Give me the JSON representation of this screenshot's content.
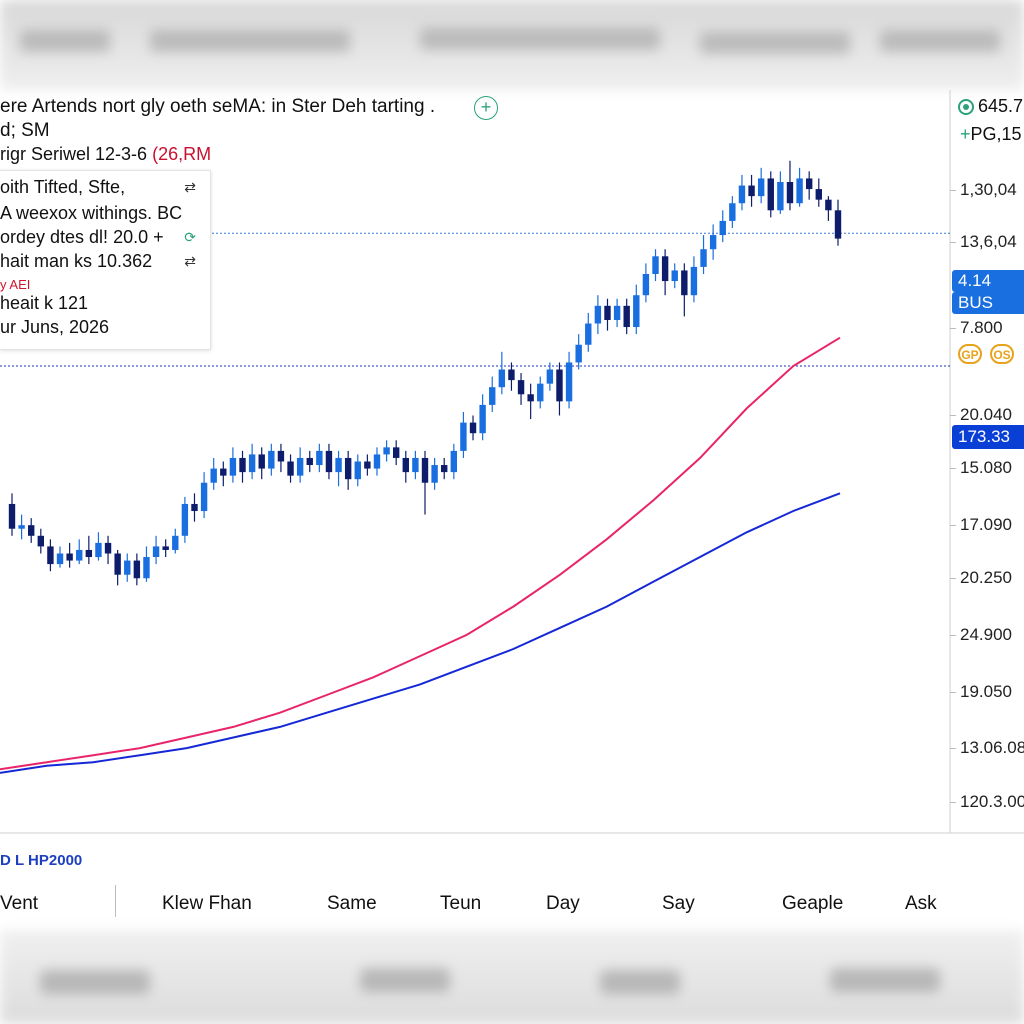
{
  "chart_data": {
    "type": "candlestick",
    "title": "ere Artends nort gly oeth seMA: in Ster Deh tarting .",
    "subtitle": "d; SM",
    "series_label": "rigr Seriwel 12-3-6",
    "series_label_red": "(26,RM",
    "info": {
      "line1": "oith Tifted, Sfte,",
      "line2": "A weexox withings. BC",
      "line3": "ordey dtes dl! 20.0 +",
      "line4": "hait man ks 10.362",
      "line5": "y AEI",
      "line6": "heait k 121",
      "line7": "ur Juns, 2026"
    },
    "candles": [
      [
        20.3,
        19.6,
        20.6,
        19.4
      ],
      [
        19.6,
        19.7,
        20.0,
        19.3
      ],
      [
        19.7,
        19.4,
        19.9,
        19.2
      ],
      [
        19.4,
        19.1,
        19.6,
        18.9
      ],
      [
        19.1,
        18.6,
        19.3,
        18.4
      ],
      [
        18.6,
        18.9,
        19.1,
        18.5
      ],
      [
        18.9,
        18.7,
        19.2,
        18.5
      ],
      [
        18.7,
        19.0,
        19.3,
        18.6
      ],
      [
        19.0,
        18.8,
        19.4,
        18.6
      ],
      [
        18.8,
        19.2,
        19.5,
        18.7
      ],
      [
        19.2,
        18.9,
        19.4,
        18.6
      ],
      [
        18.9,
        18.3,
        19.0,
        18.0
      ],
      [
        18.3,
        18.7,
        18.9,
        18.1
      ],
      [
        18.7,
        18.2,
        18.9,
        18.0
      ],
      [
        18.2,
        18.8,
        19.1,
        18.1
      ],
      [
        18.8,
        19.1,
        19.4,
        18.6
      ],
      [
        19.1,
        19.0,
        19.3,
        18.8
      ],
      [
        19.0,
        19.4,
        19.6,
        18.9
      ],
      [
        19.4,
        20.3,
        20.5,
        19.2
      ],
      [
        20.3,
        20.1,
        20.6,
        19.8
      ],
      [
        20.1,
        20.9,
        21.2,
        19.9
      ],
      [
        20.9,
        21.3,
        21.6,
        20.7
      ],
      [
        21.3,
        21.1,
        21.5,
        20.8
      ],
      [
        21.1,
        21.6,
        21.9,
        20.9
      ],
      [
        21.6,
        21.2,
        21.8,
        20.9
      ],
      [
        21.2,
        21.7,
        22.0,
        21.0
      ],
      [
        21.7,
        21.3,
        21.9,
        21.0
      ],
      [
        21.3,
        21.8,
        22.0,
        21.1
      ],
      [
        21.8,
        21.5,
        22.0,
        21.2
      ],
      [
        21.5,
        21.1,
        21.7,
        20.9
      ],
      [
        21.1,
        21.6,
        21.9,
        20.9
      ],
      [
        21.6,
        21.4,
        21.8,
        21.2
      ],
      [
        21.4,
        21.8,
        22.0,
        21.2
      ],
      [
        21.8,
        21.2,
        22.0,
        21.0
      ],
      [
        21.2,
        21.6,
        21.8,
        20.8
      ],
      [
        21.6,
        21.0,
        21.8,
        20.7
      ],
      [
        21.0,
        21.5,
        21.7,
        20.8
      ],
      [
        21.5,
        21.3,
        21.7,
        21.1
      ],
      [
        21.3,
        21.7,
        21.9,
        21.1
      ],
      [
        21.7,
        21.9,
        22.1,
        21.5
      ],
      [
        21.9,
        21.6,
        22.1,
        21.4
      ],
      [
        21.6,
        21.2,
        21.8,
        20.9
      ],
      [
        21.2,
        21.6,
        21.8,
        21.0
      ],
      [
        21.6,
        20.9,
        21.8,
        20.0
      ],
      [
        20.9,
        21.4,
        21.6,
        20.7
      ],
      [
        21.4,
        21.2,
        21.6,
        21.0
      ],
      [
        21.2,
        21.8,
        22.0,
        21.0
      ],
      [
        21.8,
        22.6,
        22.9,
        21.6
      ],
      [
        22.6,
        22.3,
        22.8,
        22.1
      ],
      [
        22.3,
        23.1,
        23.4,
        22.1
      ],
      [
        23.1,
        23.6,
        23.9,
        22.9
      ],
      [
        23.6,
        24.1,
        24.6,
        23.4
      ],
      [
        24.1,
        23.8,
        24.3,
        23.5
      ],
      [
        23.8,
        23.4,
        24.0,
        23.1
      ],
      [
        23.4,
        23.2,
        23.7,
        22.7
      ],
      [
        23.2,
        23.7,
        23.9,
        23.0
      ],
      [
        23.7,
        24.1,
        24.3,
        23.5
      ],
      [
        24.1,
        23.2,
        24.3,
        22.8
      ],
      [
        23.2,
        24.3,
        24.6,
        23.0
      ],
      [
        24.3,
        24.8,
        25.1,
        24.1
      ],
      [
        24.8,
        25.4,
        25.7,
        24.6
      ],
      [
        25.4,
        25.9,
        26.2,
        25.1
      ],
      [
        25.9,
        25.5,
        26.1,
        25.2
      ],
      [
        25.5,
        25.9,
        26.1,
        25.3
      ],
      [
        25.9,
        25.3,
        26.1,
        25.1
      ],
      [
        25.3,
        26.2,
        26.5,
        25.1
      ],
      [
        26.2,
        26.8,
        27.1,
        26.0
      ],
      [
        26.8,
        27.3,
        27.5,
        26.6
      ],
      [
        27.3,
        26.6,
        27.5,
        26.2
      ],
      [
        26.6,
        26.9,
        27.1,
        26.4
      ],
      [
        26.9,
        26.2,
        27.1,
        25.6
      ],
      [
        26.2,
        27.0,
        27.3,
        26.0
      ],
      [
        27.0,
        27.5,
        27.9,
        26.8
      ],
      [
        27.5,
        27.9,
        28.2,
        27.2
      ],
      [
        27.9,
        28.3,
        28.6,
        27.7
      ],
      [
        28.3,
        28.8,
        29.0,
        28.1
      ],
      [
        28.8,
        29.3,
        29.6,
        28.6
      ],
      [
        29.3,
        29.0,
        29.6,
        28.7
      ],
      [
        29.0,
        29.5,
        29.8,
        28.8
      ],
      [
        29.5,
        28.6,
        29.7,
        28.4
      ],
      [
        28.6,
        29.4,
        29.7,
        28.5
      ],
      [
        29.4,
        28.8,
        30.0,
        28.6
      ],
      [
        28.8,
        29.5,
        29.8,
        28.7
      ],
      [
        29.5,
        29.2,
        29.7,
        28.9
      ],
      [
        29.2,
        28.9,
        29.5,
        28.7
      ],
      [
        28.9,
        28.6,
        29.0,
        28.3
      ],
      [
        28.6,
        27.8,
        28.9,
        27.6
      ]
    ],
    "ma_pink": [
      12.8,
      13.0,
      13.2,
      13.4,
      13.7,
      14.0,
      14.4,
      14.9,
      15.4,
      16.0,
      16.6,
      17.4,
      18.3,
      19.3,
      20.4,
      21.6,
      23.0,
      24.2,
      25.0
    ],
    "ma_blue": [
      12.7,
      12.9,
      13.0,
      13.2,
      13.4,
      13.7,
      14.0,
      14.4,
      14.8,
      15.2,
      15.7,
      16.2,
      16.8,
      17.4,
      18.1,
      18.8,
      19.5,
      20.1,
      20.6
    ],
    "ylim": [
      11.0,
      32.0
    ],
    "hlines": [
      27.95,
      24.2
    ],
    "y_tick_labels": [
      "1,30,04",
      "13,6,04",
      "7.800",
      "20.040",
      "15.080",
      "17.090",
      "20.250",
      "24.900",
      "19.050",
      "13.06.08",
      "120.3.00"
    ],
    "right_top": [
      "645.7",
      "PG,15"
    ],
    "price_tags": [
      "4.14",
      "BUS",
      "173.33"
    ],
    "chips": [
      "GP",
      "OS"
    ],
    "legend": "D L HP2000"
  },
  "tabs": [
    "Vent",
    "Klew Fhan",
    "Same",
    "Teun",
    "Day",
    "Say",
    "Geaple",
    "Ask"
  ],
  "colors": {
    "bull": "#1a6fe0",
    "bear": "#0e1d6b",
    "pink": "#e8246a",
    "blue": "#1428d6",
    "accent": "#1a6fe0"
  },
  "icons": {
    "add": "plus-circle-icon",
    "refresh": "refresh-icon",
    "swap": "swap-icon",
    "status": "status-dot-icon"
  }
}
